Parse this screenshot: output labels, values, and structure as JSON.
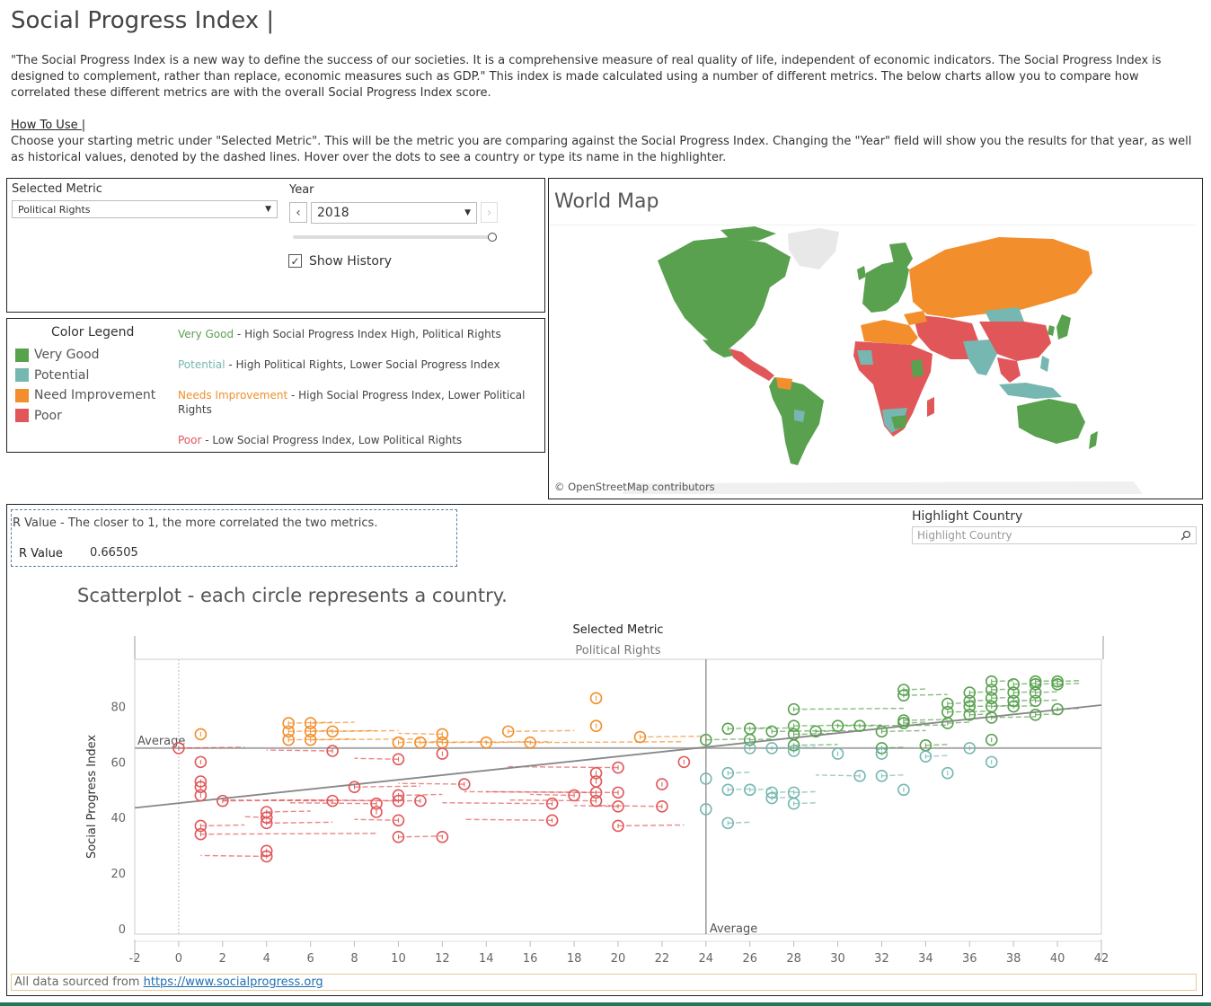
{
  "header": {
    "title": "Social Progress Index |",
    "intro": "\"The Social Progress Index is a new way to define the success of our societies. It is a comprehensive measure of real quality of life, independent of economic indicators. The Social Progress Index is designed to complement, rather than replace, economic measures such as GDP.\" This index is made calculated using a number of different metrics. The below charts allow you to compare how correlated these different metrics are with the overall Social Progress Index score.",
    "howto_heading": "How To Use |",
    "howto_text": "Choose your starting metric under \"Selected Metric\". This will be the metric you are comparing against the Social Progress Index. Changing the \"Year\" field will show you the results for that year, as well as historical values, denoted by the dashed lines. Hover over the dots to see a country or type its name in the highlighter."
  },
  "controls": {
    "metric_label": "Selected Metric",
    "metric_value": "Political Rights",
    "year_label": "Year",
    "year_value": "2018",
    "show_history_label": "Show History",
    "show_history_checked": true,
    "prev_glyph": "‹",
    "next_glyph": "›",
    "dropdown_glyph": "▼",
    "check_glyph": "✓"
  },
  "legend": {
    "title": "Color Legend",
    "items": [
      {
        "label": "Very Good",
        "color": "#59a14f"
      },
      {
        "label": "Potential",
        "color": "#76b7b2"
      },
      {
        "label": "Need Improvement",
        "color": "#f28e2b"
      },
      {
        "label": "Poor",
        "color": "#e15759"
      }
    ],
    "descriptions": [
      {
        "key": "Very Good",
        "text": " - High Social Progress Index High,  Political Rights",
        "color": "#59a14f"
      },
      {
        "key": "Potential",
        "text": " -  High Political Rights, Lower Social Progress Index",
        "color": "#76b7b2"
      },
      {
        "key": "Needs Improvement",
        "text": " -  High Social Progress Index, Lower Political Rights",
        "color": "#f28e2b"
      },
      {
        "key": "Poor",
        "text": " - Low Social Progress Index, Low Political Rights",
        "color": "#e15759"
      }
    ]
  },
  "map": {
    "title": "World Map",
    "attribution": "© OpenStreetMap contributors",
    "colors": {
      "very_good": "#59a14f",
      "potential": "#76b7b2",
      "need_improvement": "#f28e2b",
      "poor": "#e15759",
      "no_data": "#e8e8e8"
    }
  },
  "rvalue": {
    "caption": "R Value - The closer to 1, the more correlated the two metrics.",
    "label": "R Value",
    "value": "0.66505"
  },
  "highlight": {
    "label": "Highlight Country",
    "placeholder": "Highlight Country",
    "icon": "search-icon"
  },
  "scatter_title": "Scatterplot - each circle represents a country.",
  "footer": {
    "text": "All data sourced from ",
    "link": "https://www.socialprogress.org"
  },
  "chart_data": {
    "type": "scatter",
    "header_title": "Selected Metric",
    "header_subtitle": "Political Rights",
    "xlabel": "",
    "ylabel": "Social Progress Index",
    "xlim": [
      -2,
      42
    ],
    "ylim": [
      -2,
      97
    ],
    "xticks": [
      -2,
      0,
      2,
      4,
      6,
      8,
      10,
      12,
      14,
      16,
      18,
      20,
      22,
      24,
      26,
      28,
      30,
      32,
      34,
      36,
      38,
      40,
      42
    ],
    "yticks": [
      0,
      20,
      40,
      60,
      80
    ],
    "avg_x": 24,
    "avg_y": 65,
    "avg_label": "Average",
    "trend": [
      [
        -2,
        43.5
      ],
      [
        42,
        80.5
      ]
    ],
    "grid": false,
    "colors": {
      "Very Good": "#59a14f",
      "Potential": "#76b7b2",
      "Need Improvement": "#f28e2b",
      "Poor": "#e15759"
    },
    "points": [
      {
        "x": 19,
        "y": 83,
        "c": "Need Improvement",
        "h": []
      },
      {
        "x": 1,
        "y": 70,
        "c": "Need Improvement",
        "h": []
      },
      {
        "x": 5,
        "y": 74,
        "c": "Need Improvement",
        "h": [
          7
        ]
      },
      {
        "x": 6,
        "y": 74,
        "c": "Need Improvement",
        "h": [
          8
        ]
      },
      {
        "x": 5,
        "y": 71,
        "c": "Need Improvement",
        "h": [
          7
        ]
      },
      {
        "x": 6,
        "y": 71,
        "c": "Need Improvement",
        "h": [
          9
        ]
      },
      {
        "x": 7,
        "y": 71,
        "c": "Need Improvement",
        "h": [
          10
        ]
      },
      {
        "x": 5,
        "y": 68,
        "c": "Need Improvement",
        "h": [
          8
        ]
      },
      {
        "x": 6,
        "y": 68,
        "c": "Need Improvement",
        "h": [
          11
        ]
      },
      {
        "x": 12,
        "y": 70,
        "c": "Need Improvement",
        "h": [
          10
        ]
      },
      {
        "x": 15,
        "y": 71,
        "c": "Need Improvement",
        "h": [
          18
        ]
      },
      {
        "x": 19,
        "y": 73,
        "c": "Need Improvement",
        "h": []
      },
      {
        "x": 21,
        "y": 69,
        "c": "Need Improvement",
        "h": [
          24
        ]
      },
      {
        "x": 10,
        "y": 67,
        "c": "Need Improvement",
        "h": [
          12
        ]
      },
      {
        "x": 11,
        "y": 67,
        "c": "Need Improvement",
        "h": [
          14
        ]
      },
      {
        "x": 12,
        "y": 67,
        "c": "Need Improvement",
        "h": [
          16
        ]
      },
      {
        "x": 14,
        "y": 67,
        "c": "Need Improvement",
        "h": [
          17
        ]
      },
      {
        "x": 16,
        "y": 67,
        "c": "Need Improvement",
        "h": [
          23
        ]
      },
      {
        "x": 0,
        "y": 65,
        "c": "Poor",
        "h": [
          3
        ]
      },
      {
        "x": 7,
        "y": 64,
        "c": "Poor",
        "h": [
          4
        ]
      },
      {
        "x": 12,
        "y": 63,
        "c": "Poor",
        "h": []
      },
      {
        "x": 10,
        "y": 61,
        "c": "Poor",
        "h": [
          8
        ]
      },
      {
        "x": 1,
        "y": 60,
        "c": "Poor",
        "h": []
      },
      {
        "x": 20,
        "y": 58,
        "c": "Poor",
        "h": [
          15
        ]
      },
      {
        "x": 23,
        "y": 60,
        "c": "Poor",
        "h": []
      },
      {
        "x": 19,
        "y": 56,
        "c": "Poor",
        "h": []
      },
      {
        "x": 19,
        "y": 53,
        "c": "Poor",
        "h": []
      },
      {
        "x": 1,
        "y": 53,
        "c": "Poor",
        "h": []
      },
      {
        "x": 1,
        "y": 51,
        "c": "Poor",
        "h": []
      },
      {
        "x": 8,
        "y": 51,
        "c": "Poor",
        "h": [
          11
        ]
      },
      {
        "x": 13,
        "y": 52,
        "c": "Poor",
        "h": [
          10
        ]
      },
      {
        "x": 22,
        "y": 52,
        "c": "Poor",
        "h": []
      },
      {
        "x": 1,
        "y": 48,
        "c": "Poor",
        "h": []
      },
      {
        "x": 20,
        "y": 49,
        "c": "Poor",
        "h": [
          14
        ]
      },
      {
        "x": 19,
        "y": 49,
        "c": "Poor",
        "h": [
          13
        ]
      },
      {
        "x": 18,
        "y": 48,
        "c": "Poor",
        "h": [
          16
        ]
      },
      {
        "x": 2,
        "y": 46,
        "c": "Poor",
        "h": [
          6
        ]
      },
      {
        "x": 7,
        "y": 46,
        "c": "Poor",
        "h": [
          2
        ]
      },
      {
        "x": 9,
        "y": 45,
        "c": "Poor",
        "h": [
          5
        ]
      },
      {
        "x": 10,
        "y": 46,
        "c": "Poor",
        "h": [
          4
        ]
      },
      {
        "x": 10,
        "y": 48,
        "c": "Poor",
        "h": [
          12
        ]
      },
      {
        "x": 11,
        "y": 46,
        "c": "Poor",
        "h": [
          6
        ]
      },
      {
        "x": 17,
        "y": 45,
        "c": "Poor",
        "h": [
          12
        ]
      },
      {
        "x": 19,
        "y": 46,
        "c": "Poor",
        "h": [
          15
        ]
      },
      {
        "x": 20,
        "y": 44,
        "c": "Poor",
        "h": [
          18
        ]
      },
      {
        "x": 22,
        "y": 44,
        "c": "Poor",
        "h": [
          19
        ]
      },
      {
        "x": 4,
        "y": 42,
        "c": "Poor",
        "h": [
          6
        ]
      },
      {
        "x": 9,
        "y": 42,
        "c": "Poor",
        "h": []
      },
      {
        "x": 4,
        "y": 40,
        "c": "Poor",
        "h": [
          3
        ]
      },
      {
        "x": 10,
        "y": 39,
        "c": "Poor",
        "h": [
          8
        ]
      },
      {
        "x": 17,
        "y": 39,
        "c": "Poor",
        "h": [
          13
        ]
      },
      {
        "x": 20,
        "y": 37,
        "c": "Poor",
        "h": [
          23
        ]
      },
      {
        "x": 4,
        "y": 38,
        "c": "Poor",
        "h": [
          7
        ]
      },
      {
        "x": 1,
        "y": 37,
        "c": "Poor",
        "h": [
          3
        ]
      },
      {
        "x": 1,
        "y": 34,
        "c": "Poor",
        "h": [
          9
        ]
      },
      {
        "x": 10,
        "y": 33,
        "c": "Poor",
        "h": [
          12
        ]
      },
      {
        "x": 12,
        "y": 33,
        "c": "Poor",
        "h": []
      },
      {
        "x": 4,
        "y": 28,
        "c": "Poor",
        "h": []
      },
      {
        "x": 4,
        "y": 26,
        "c": "Poor",
        "h": [
          1
        ]
      },
      {
        "x": 25,
        "y": 72,
        "c": "Very Good",
        "h": [
          27
        ]
      },
      {
        "x": 26,
        "y": 72,
        "c": "Very Good",
        "h": [
          28
        ]
      },
      {
        "x": 27,
        "y": 71,
        "c": "Very Good",
        "h": [
          30
        ]
      },
      {
        "x": 28,
        "y": 73,
        "c": "Very Good",
        "h": [
          31
        ]
      },
      {
        "x": 28,
        "y": 70,
        "c": "Very Good",
        "h": [
          30
        ]
      },
      {
        "x": 28,
        "y": 79,
        "c": "Very Good",
        "h": [
          33
        ]
      },
      {
        "x": 30,
        "y": 73,
        "c": "Very Good",
        "h": [
          32
        ]
      },
      {
        "x": 31,
        "y": 73,
        "c": "Very Good",
        "h": [
          35
        ]
      },
      {
        "x": 24,
        "y": 68,
        "c": "Very Good",
        "h": [
          26
        ]
      },
      {
        "x": 26,
        "y": 68,
        "c": "Very Good",
        "h": [
          27
        ]
      },
      {
        "x": 28,
        "y": 66,
        "c": "Very Good",
        "h": [
          30
        ]
      },
      {
        "x": 29,
        "y": 71,
        "c": "Very Good",
        "h": [
          31
        ]
      },
      {
        "x": 32,
        "y": 71,
        "c": "Very Good",
        "h": [
          34
        ]
      },
      {
        "x": 33,
        "y": 74,
        "c": "Very Good",
        "h": [
          34
        ]
      },
      {
        "x": 33,
        "y": 75,
        "c": "Very Good",
        "h": [
          35
        ]
      },
      {
        "x": 32,
        "y": 65,
        "c": "Very Good",
        "h": [
          33
        ]
      },
      {
        "x": 34,
        "y": 66,
        "c": "Very Good",
        "h": [
          35
        ]
      },
      {
        "x": 33,
        "y": 86,
        "c": "Very Good",
        "h": [
          34
        ]
      },
      {
        "x": 33,
        "y": 84,
        "c": "Very Good",
        "h": [
          35
        ]
      },
      {
        "x": 35,
        "y": 81,
        "c": "Very Good",
        "h": [
          36
        ]
      },
      {
        "x": 35,
        "y": 78,
        "c": "Very Good",
        "h": [
          37
        ]
      },
      {
        "x": 35,
        "y": 74,
        "c": "Very Good",
        "h": [
          36
        ]
      },
      {
        "x": 36,
        "y": 85,
        "c": "Very Good",
        "h": [
          37
        ]
      },
      {
        "x": 36,
        "y": 82,
        "c": "Very Good",
        "h": [
          37
        ]
      },
      {
        "x": 36,
        "y": 80,
        "c": "Very Good",
        "h": [
          38
        ]
      },
      {
        "x": 36,
        "y": 77,
        "c": "Very Good",
        "h": [
          37
        ]
      },
      {
        "x": 37,
        "y": 89,
        "c": "Very Good",
        "h": [
          38
        ]
      },
      {
        "x": 37,
        "y": 86,
        "c": "Very Good",
        "h": [
          38
        ]
      },
      {
        "x": 37,
        "y": 83,
        "c": "Very Good",
        "h": [
          38
        ]
      },
      {
        "x": 37,
        "y": 80,
        "c": "Very Good",
        "h": [
          38
        ]
      },
      {
        "x": 37,
        "y": 76,
        "c": "Very Good",
        "h": [
          39
        ]
      },
      {
        "x": 37,
        "y": 68,
        "c": "Very Good",
        "h": []
      },
      {
        "x": 38,
        "y": 88,
        "c": "Very Good",
        "h": [
          39
        ]
      },
      {
        "x": 38,
        "y": 85,
        "c": "Very Good",
        "h": [
          39
        ]
      },
      {
        "x": 38,
        "y": 82,
        "c": "Very Good",
        "h": [
          39
        ]
      },
      {
        "x": 38,
        "y": 80,
        "c": "Very Good",
        "h": [
          39
        ]
      },
      {
        "x": 39,
        "y": 89,
        "c": "Very Good",
        "h": [
          40
        ]
      },
      {
        "x": 39,
        "y": 88,
        "c": "Very Good",
        "h": [
          40
        ]
      },
      {
        "x": 39,
        "y": 85,
        "c": "Very Good",
        "h": [
          40
        ]
      },
      {
        "x": 39,
        "y": 82,
        "c": "Very Good",
        "h": [
          40
        ]
      },
      {
        "x": 39,
        "y": 77,
        "c": "Very Good",
        "h": [
          40
        ]
      },
      {
        "x": 40,
        "y": 89,
        "c": "Very Good",
        "h": [
          41
        ]
      },
      {
        "x": 40,
        "y": 88,
        "c": "Very Good",
        "h": [
          41
        ]
      },
      {
        "x": 40,
        "y": 79,
        "c": "Very Good",
        "h": [
          41
        ]
      },
      {
        "x": 26,
        "y": 65,
        "c": "Potential",
        "h": []
      },
      {
        "x": 27,
        "y": 65,
        "c": "Potential",
        "h": [
          29
        ]
      },
      {
        "x": 28,
        "y": 64,
        "c": "Potential",
        "h": []
      },
      {
        "x": 30,
        "y": 63,
        "c": "Potential",
        "h": []
      },
      {
        "x": 32,
        "y": 63,
        "c": "Potential",
        "h": []
      },
      {
        "x": 34,
        "y": 62,
        "c": "Potential",
        "h": [
          35
        ]
      },
      {
        "x": 36,
        "y": 65,
        "c": "Potential",
        "h": []
      },
      {
        "x": 37,
        "y": 60,
        "c": "Potential",
        "h": []
      },
      {
        "x": 25,
        "y": 56,
        "c": "Potential",
        "h": [
          26
        ]
      },
      {
        "x": 24,
        "y": 54,
        "c": "Potential",
        "h": []
      },
      {
        "x": 31,
        "y": 55,
        "c": "Potential",
        "h": [
          29
        ]
      },
      {
        "x": 32,
        "y": 55,
        "c": "Potential",
        "h": [
          33
        ]
      },
      {
        "x": 35,
        "y": 56,
        "c": "Potential",
        "h": []
      },
      {
        "x": 25,
        "y": 50,
        "c": "Potential",
        "h": [
          26
        ]
      },
      {
        "x": 26,
        "y": 50,
        "c": "Potential",
        "h": [
          27
        ]
      },
      {
        "x": 27,
        "y": 49,
        "c": "Potential",
        "h": [
          28
        ]
      },
      {
        "x": 28,
        "y": 49,
        "c": "Potential",
        "h": [
          29
        ]
      },
      {
        "x": 27,
        "y": 47,
        "c": "Potential",
        "h": [
          28
        ]
      },
      {
        "x": 28,
        "y": 45,
        "c": "Potential",
        "h": [
          29
        ]
      },
      {
        "x": 33,
        "y": 50,
        "c": "Potential",
        "h": []
      },
      {
        "x": 24,
        "y": 43,
        "c": "Potential",
        "h": []
      },
      {
        "x": 25,
        "y": 38,
        "c": "Potential",
        "h": [
          26
        ]
      }
    ]
  }
}
